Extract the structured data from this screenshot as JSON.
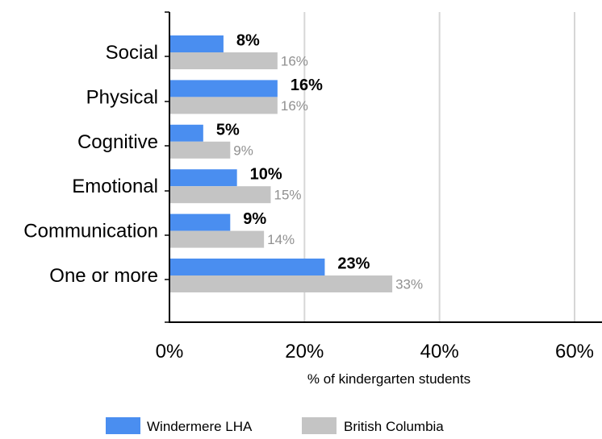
{
  "chart_data": {
    "type": "bar",
    "orientation": "horizontal",
    "categories": [
      "Social",
      "Physical",
      "Cognitive",
      "Emotional",
      "Communication",
      "One or more"
    ],
    "series": [
      {
        "name": "Windermere LHA",
        "values": [
          8,
          16,
          5,
          10,
          9,
          23
        ],
        "color": "#4a8ef0",
        "label_color": "#000000",
        "labels": [
          "8%",
          "16%",
          "5%",
          "10%",
          "9%",
          "23%"
        ]
      },
      {
        "name": "British Columbia",
        "values": [
          16,
          16,
          9,
          15,
          14,
          33
        ],
        "color": "#c4c4c4",
        "label_color": "#909090",
        "labels": [
          "16%",
          "16%",
          "9%",
          "15%",
          "14%",
          "33%"
        ]
      }
    ],
    "xlabel": "% of kindergarten students",
    "xlim": [
      0,
      60
    ],
    "xticks": [
      0,
      20,
      40,
      60
    ],
    "xtick_labels": [
      "0%",
      "20%",
      "40%",
      "60%"
    ],
    "grid": "vertical",
    "legend_position": "bottom"
  }
}
